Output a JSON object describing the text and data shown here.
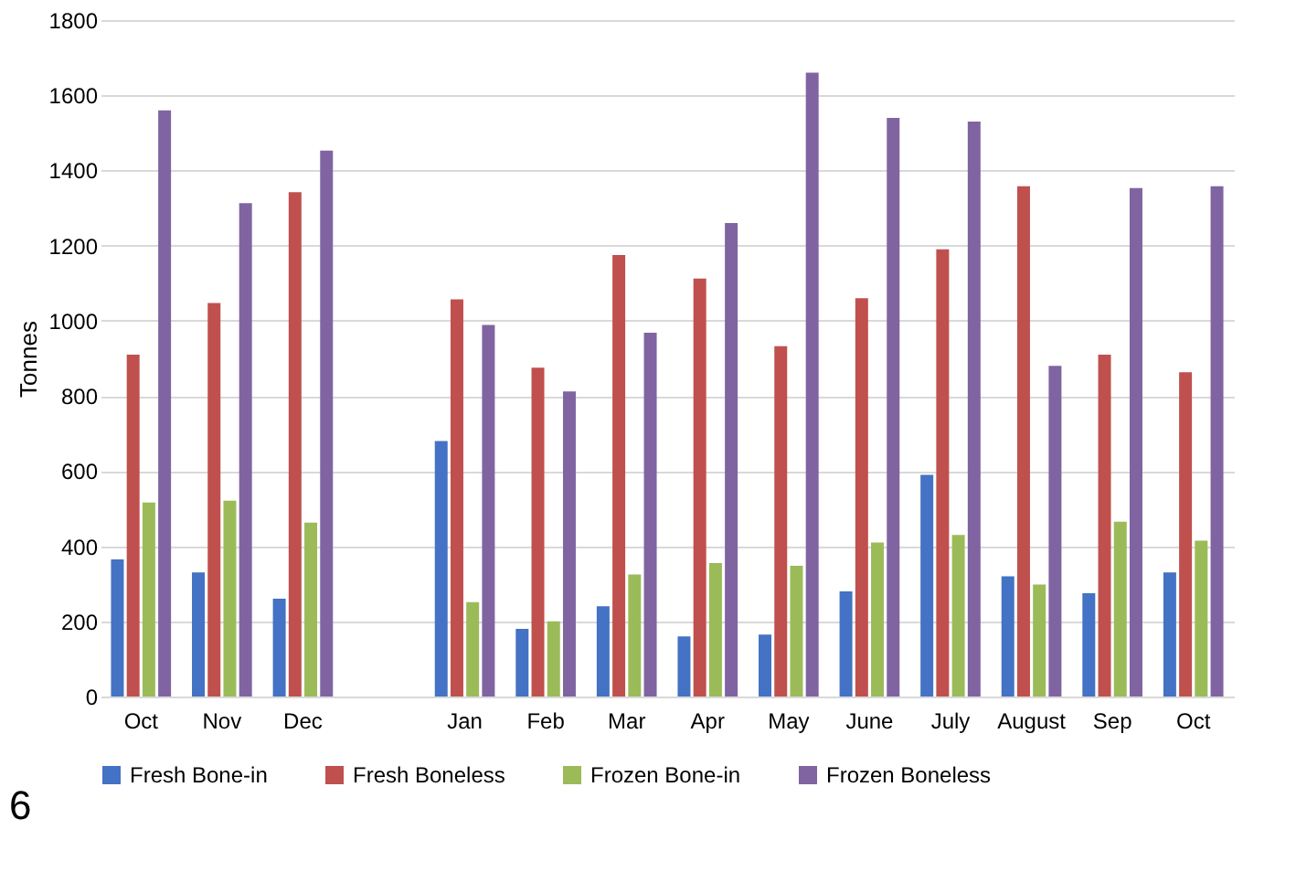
{
  "chart_data": {
    "type": "bar",
    "ylabel": "Tonnes",
    "categories": [
      "Oct",
      "Nov",
      "Dec",
      null,
      "Jan",
      "Feb",
      "Mar",
      "Apr",
      "May",
      "June",
      "July",
      "August",
      "Sep",
      "Oct"
    ],
    "series": [
      {
        "name": "Fresh Bone-in",
        "color": "#4472c4",
        "values": [
          365,
          330,
          260,
          null,
          680,
          180,
          240,
          160,
          165,
          280,
          590,
          320,
          275,
          330
        ]
      },
      {
        "name": "Fresh Boneless",
        "color": "#c0504d",
        "values": [
          910,
          1047,
          1342,
          null,
          1057,
          875,
          1175,
          1112,
          932,
          1060,
          1190,
          1358,
          910,
          863
        ]
      },
      {
        "name": "Frozen Bone-in",
        "color": "#9bbb59",
        "values": [
          516,
          521,
          463,
          null,
          251,
          200,
          325,
          355,
          348,
          410,
          430,
          298,
          465,
          415
        ]
      },
      {
        "name": "Frozen Boneless",
        "color": "#8064a2",
        "values": [
          1560,
          1313,
          1453,
          null,
          989,
          812,
          968,
          1260,
          1660,
          1540,
          1530,
          880,
          1353,
          1358
        ]
      }
    ],
    "ylim": [
      0,
      1800
    ],
    "yticks": [
      0,
      200,
      400,
      600,
      800,
      1000,
      1200,
      1400,
      1600,
      1800
    ],
    "grid": "y",
    "legend": "bottom",
    "annotations": [
      "6"
    ]
  }
}
